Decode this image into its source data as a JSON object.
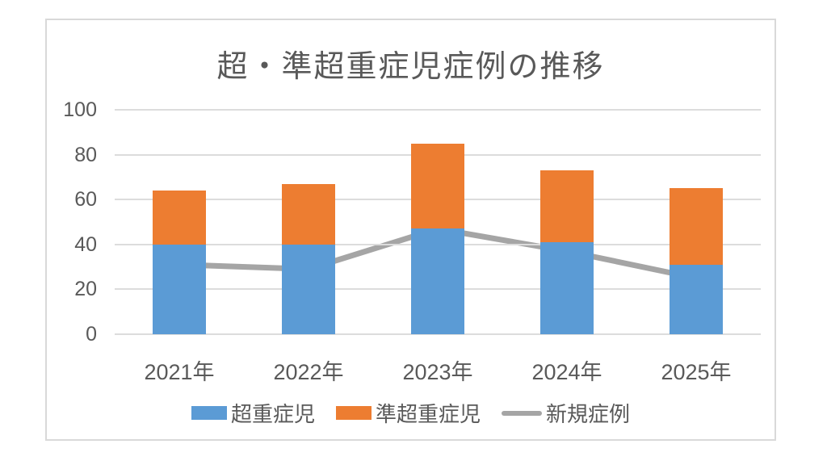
{
  "chart_data": {
    "type": "bar",
    "subtype": "stacked-bars-with-line-overlay",
    "title": "超・準超重症児症例の推移",
    "categories": [
      "2021年",
      "2022年",
      "2023年",
      "2024年",
      "2025年"
    ],
    "series": [
      {
        "name": "超重症児",
        "type": "bar",
        "color": "#5b9bd5",
        "values": [
          40,
          40,
          47,
          41,
          31
        ]
      },
      {
        "name": "準超重症児",
        "type": "bar",
        "color": "#ed7d31",
        "values": [
          24,
          27,
          38,
          32,
          34
        ]
      },
      {
        "name": "新規症例",
        "type": "line",
        "color": "#a5a5a5",
        "values": [
          31,
          29,
          47,
          37,
          25
        ]
      }
    ],
    "stacked_totals": [
      64,
      67,
      85,
      73,
      65
    ],
    "xlabel": "",
    "ylabel": "",
    "ylim": [
      0,
      100
    ],
    "yticks": [
      0,
      20,
      40,
      60,
      80,
      100
    ],
    "grid": "horizontal",
    "legend_position": "bottom",
    "colors": {
      "text": "#595959",
      "gridline": "#dcdcdc",
      "frame_border": "#d9d9d9",
      "background": "#ffffff"
    }
  }
}
